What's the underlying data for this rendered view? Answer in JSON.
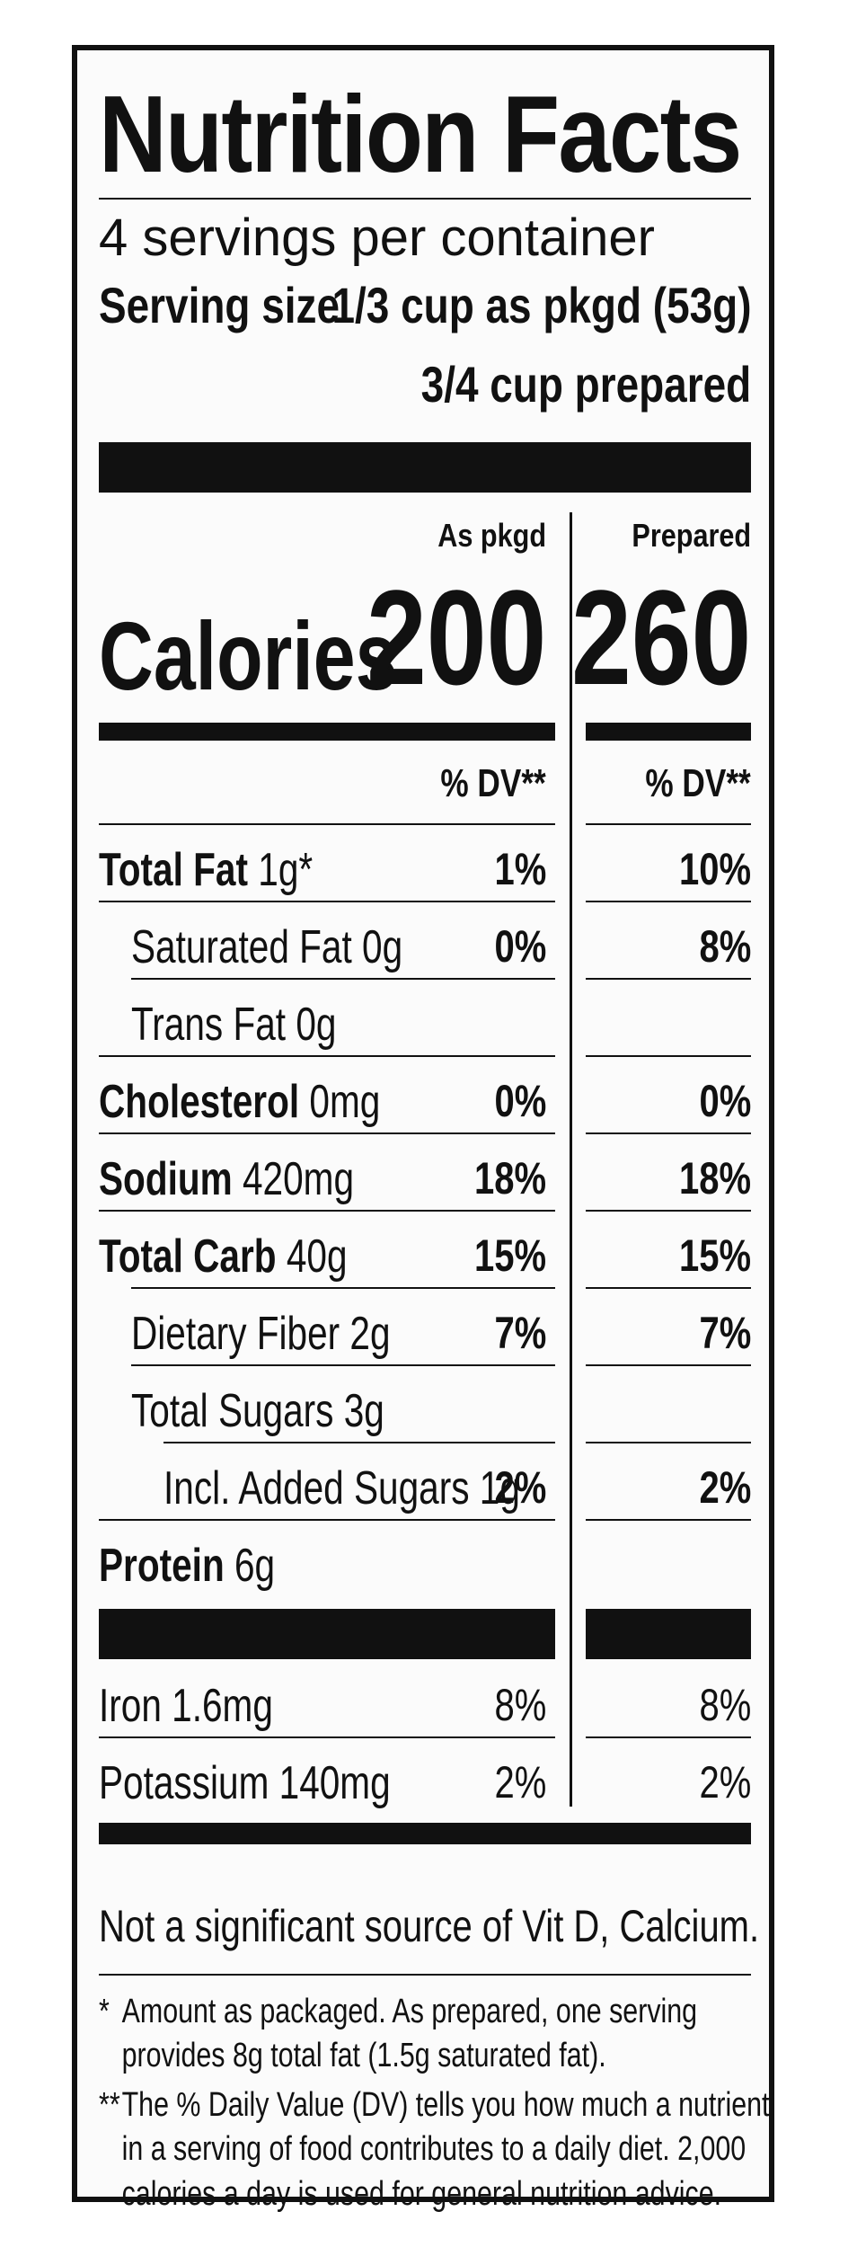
{
  "label": {
    "title": "Nutrition Facts",
    "servings_per_container": "4 servings per container",
    "serving_size_label": "Serving size",
    "serving_size_pkgd": "1/3 cup as pkgd (53g)",
    "serving_size_prepared": "3/4 cup prepared",
    "columns": {
      "left": "As pkgd",
      "right": "Prepared"
    },
    "calories": {
      "label": "Calories",
      "as_pkgd": "200",
      "prepared": "260"
    },
    "dv_header": "% DV**",
    "rows": [
      {
        "name": "Total Fat",
        "amount": "1g*",
        "dv_pkgd": "1%",
        "dv_prep": "10%"
      },
      {
        "name": "Saturated Fat",
        "amount": "0g",
        "dv_pkgd": "0%",
        "dv_prep": "8%"
      },
      {
        "name": "Trans Fat",
        "amount": "0g",
        "dv_pkgd": "",
        "dv_prep": ""
      },
      {
        "name": "Cholesterol",
        "amount": "0mg",
        "dv_pkgd": "0%",
        "dv_prep": "0%"
      },
      {
        "name": "Sodium",
        "amount": "420mg",
        "dv_pkgd": "18%",
        "dv_prep": "18%"
      },
      {
        "name": "Total Carb",
        "amount": "40g",
        "dv_pkgd": "15%",
        "dv_prep": "15%"
      },
      {
        "name": "Dietary Fiber",
        "amount": "2g",
        "dv_pkgd": "7%",
        "dv_prep": "7%"
      },
      {
        "name": "Total Sugars",
        "amount": "3g",
        "dv_pkgd": "",
        "dv_prep": ""
      },
      {
        "name": "Incl. Added Sugars",
        "amount": "1g",
        "dv_pkgd": "2%",
        "dv_prep": "2%"
      },
      {
        "name": "Protein",
        "amount": "6g",
        "dv_pkgd": "",
        "dv_prep": ""
      }
    ],
    "minerals": [
      {
        "name": "Iron",
        "amount": "1.6mg",
        "dv_pkgd": "8%",
        "dv_prep": "8%"
      },
      {
        "name": "Potassium",
        "amount": "140mg",
        "dv_pkgd": "2%",
        "dv_prep": "2%"
      }
    ],
    "not_significant": "Not a significant source of Vit D, Calcium.",
    "footnote_1_mark": "*",
    "footnote_1_line1": "Amount as packaged. As prepared, one serving",
    "footnote_1_line2": "provides 8g total fat (1.5g saturated fat).",
    "footnote_2_mark": "**",
    "footnote_2_line1": "The % Daily Value (DV) tells you how much a nutrient",
    "footnote_2_line2": "in a serving of food contributes to a daily diet. 2,000",
    "footnote_2_line3": "calories a day is used for general nutrition advice."
  }
}
